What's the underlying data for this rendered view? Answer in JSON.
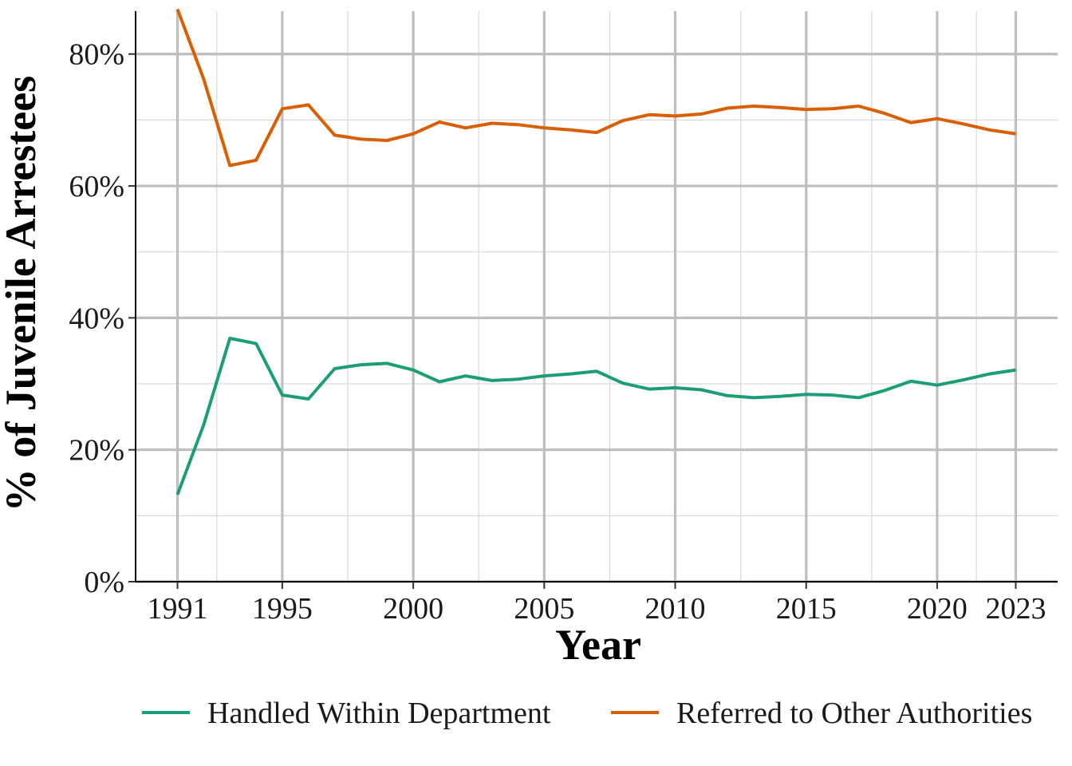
{
  "chart_data": {
    "type": "line",
    "title": "",
    "xlabel": "Year",
    "ylabel": "% of Juvenile Arrestees",
    "xlim": [
      1989.4,
      2024.6
    ],
    "ylim": [
      0,
      86.5
    ],
    "x_ticks": [
      1991,
      1995,
      2000,
      2005,
      2010,
      2015,
      2020,
      2023
    ],
    "x_tick_labels": [
      "1991",
      "1995",
      "2000",
      "2005",
      "2010",
      "2015",
      "2020",
      "2023"
    ],
    "x_minor_ticks": [
      1992.5,
      1997.5,
      2002.5,
      2007.5,
      2012.5,
      2017.5,
      2021.5
    ],
    "y_ticks": [
      0,
      20,
      40,
      60,
      80
    ],
    "y_tick_labels": [
      "0%",
      "20%",
      "40%",
      "60%",
      "80%"
    ],
    "y_minor_ticks": [
      10,
      30,
      50,
      70
    ],
    "grid": true,
    "legend_position": "bottom",
    "x": [
      1991,
      1992,
      1993,
      1994,
      1995,
      1996,
      1997,
      1998,
      1999,
      2000,
      2001,
      2002,
      2003,
      2004,
      2005,
      2006,
      2007,
      2008,
      2009,
      2010,
      2011,
      2012,
      2013,
      2014,
      2015,
      2016,
      2017,
      2018,
      2019,
      2020,
      2021,
      2022,
      2023
    ],
    "series": [
      {
        "name": "Handled Within Department",
        "color": "#1b9e77",
        "values": [
          13.2,
          23.8,
          36.9,
          36.1,
          28.3,
          27.7,
          32.3,
          32.9,
          33.1,
          32.1,
          30.3,
          31.2,
          30.5,
          30.7,
          31.2,
          31.5,
          31.9,
          30.1,
          29.2,
          29.4,
          29.1,
          28.2,
          27.9,
          28.1,
          28.4,
          28.3,
          27.9,
          29.0,
          30.4,
          29.8,
          30.6,
          31.5,
          32.1
        ]
      },
      {
        "name": "Referred to Other Authorities",
        "color": "#d95f02",
        "values": [
          86.8,
          76.2,
          63.1,
          63.9,
          71.7,
          72.3,
          67.7,
          67.1,
          66.9,
          67.9,
          69.7,
          68.8,
          69.5,
          69.3,
          68.8,
          68.5,
          68.1,
          69.9,
          70.8,
          70.6,
          70.9,
          71.8,
          72.1,
          71.9,
          71.6,
          71.7,
          72.1,
          71.0,
          69.6,
          70.2,
          69.4,
          68.5,
          67.9
        ]
      }
    ]
  }
}
